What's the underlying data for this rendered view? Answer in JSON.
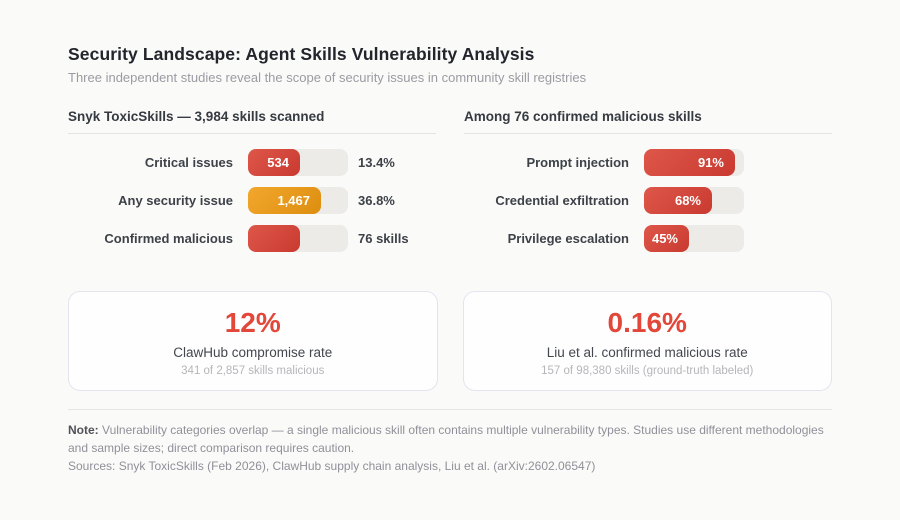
{
  "page": {
    "title": "Security Landscape: Agent Skills Vulnerability Analysis",
    "subtitle": "Three independent studies reveal the scope of security issues in community skill registries"
  },
  "panels": [
    {
      "heading": "Snyk ToxicSkills — 3,984 skills scanned",
      "rows": [
        {
          "label": "Critical issues",
          "bar_label": "534",
          "value": "13.4%",
          "fill_pct": 52,
          "color": "red"
        },
        {
          "label": "Any security issue",
          "bar_label": "1,467",
          "value": "36.8%",
          "fill_pct": 73,
          "color": "amber"
        },
        {
          "label": "Confirmed malicious",
          "bar_label": "",
          "value": "76 skills",
          "fill_pct": 52,
          "color": "red"
        }
      ]
    },
    {
      "heading": "Among 76 confirmed malicious skills",
      "rows": [
        {
          "label": "Prompt injection",
          "bar_label": "91%",
          "value": "",
          "fill_pct": 91,
          "color": "red"
        },
        {
          "label": "Credential exfiltration",
          "bar_label": "68%",
          "value": "",
          "fill_pct": 68,
          "color": "red"
        },
        {
          "label": "Privilege escalation",
          "bar_label": "45%",
          "value": "",
          "fill_pct": 45,
          "color": "red"
        }
      ]
    }
  ],
  "stat_cards": [
    {
      "value": "12%",
      "label": "ClawHub compromise rate",
      "sublabel": "341 of 2,857 skills malicious"
    },
    {
      "value": "0.16%",
      "label": "Liu et al. confirmed malicious rate",
      "sublabel": "157 of 98,380 skills (ground-truth labeled)"
    }
  ],
  "footer": {
    "note_label": "Note:",
    "note_text": "Vulnerability categories overlap — a single malicious skill often contains multiple vulnerability types. Studies use different methodologies and sample sizes; direct comparison requires caution.",
    "sources": "Sources: Snyk ToxicSkills (Feb 2026), ClawHub supply chain analysis, Liu et al. (arXiv:2602.06547)"
  },
  "colors": {
    "background": "#fafaf8",
    "bar_red": "#cf4038",
    "bar_amber": "#e89b1e",
    "bar_track": "#edebe7",
    "accent_red": "#e2473a",
    "card_border": "#e4e4ef",
    "card_background": "#fefefe"
  },
  "chart_data": [
    {
      "type": "bar",
      "orientation": "horizontal",
      "title": "Snyk ToxicSkills — 3,984 skills scanned",
      "total_scanned": 3984,
      "categories": [
        "Critical issues",
        "Any security issue",
        "Confirmed malicious"
      ],
      "values": [
        534,
        1467,
        76
      ],
      "value_labels": [
        "13.4%",
        "36.8%",
        "76 skills"
      ],
      "bar_colors": [
        "red",
        "amber",
        "red"
      ]
    },
    {
      "type": "bar",
      "orientation": "horizontal",
      "title": "Among 76 confirmed malicious skills",
      "categories": [
        "Prompt injection",
        "Credential exfiltration",
        "Privilege escalation"
      ],
      "values": [
        91,
        68,
        45
      ],
      "unit": "%",
      "bar_colors": [
        "red",
        "red",
        "red"
      ]
    },
    {
      "type": "stat",
      "title": "ClawHub compromise rate",
      "value": "12%",
      "detail": "341 of 2,857 skills malicious"
    },
    {
      "type": "stat",
      "title": "Liu et al. confirmed malicious rate",
      "value": "0.16%",
      "detail": "157 of 98,380 skills (ground-truth labeled)"
    }
  ]
}
